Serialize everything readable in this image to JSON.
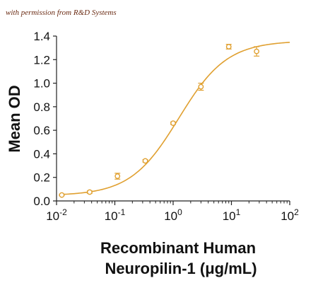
{
  "watermark": "with permission from R&D Systems",
  "chart_data": {
    "type": "scatter",
    "xlabel_line1": "Recombinant Human",
    "xlabel_line2": "Neuropilin-1 (μg/mL)",
    "ylabel": "Mean OD",
    "x_scale": "log10",
    "xlim": [
      0.01,
      100
    ],
    "ylim": [
      0,
      1.4
    ],
    "x_ticks": [
      0.01,
      0.1,
      1,
      10,
      100
    ],
    "x_tick_labels": [
      {
        "base": "10",
        "exp": "-2"
      },
      {
        "base": "10",
        "exp": "-1"
      },
      {
        "base": "10",
        "exp": "0"
      },
      {
        "base": "10",
        "exp": "1"
      },
      {
        "base": "10",
        "exp": "2"
      }
    ],
    "y_ticks": [
      0.0,
      0.2,
      0.4,
      0.6,
      0.8,
      1.0,
      1.2,
      1.4
    ],
    "y_tick_labels": [
      "0.0",
      "0.2",
      "0.4",
      "0.6",
      "0.8",
      "1.0",
      "1.2",
      "1.4"
    ],
    "grid": false,
    "color": "#e0a030",
    "points": [
      {
        "x": 0.0123,
        "y": 0.05,
        "err": 0.005
      },
      {
        "x": 0.037,
        "y": 0.075,
        "err": 0.01
      },
      {
        "x": 0.111,
        "y": 0.21,
        "err": 0.025
      },
      {
        "x": 0.333,
        "y": 0.34,
        "err": 0.01
      },
      {
        "x": 1.0,
        "y": 0.66,
        "err": 0.01
      },
      {
        "x": 3.0,
        "y": 0.97,
        "err": 0.03
      },
      {
        "x": 9.0,
        "y": 1.31,
        "err": 0.02
      },
      {
        "x": 27.0,
        "y": 1.27,
        "err": 0.04
      }
    ],
    "fit_curve": {
      "model": "4PL",
      "bottom": 0.045,
      "top": 1.36,
      "ec50": 1.25,
      "hill": 1.05,
      "x_range": [
        0.0123,
        100
      ]
    }
  }
}
